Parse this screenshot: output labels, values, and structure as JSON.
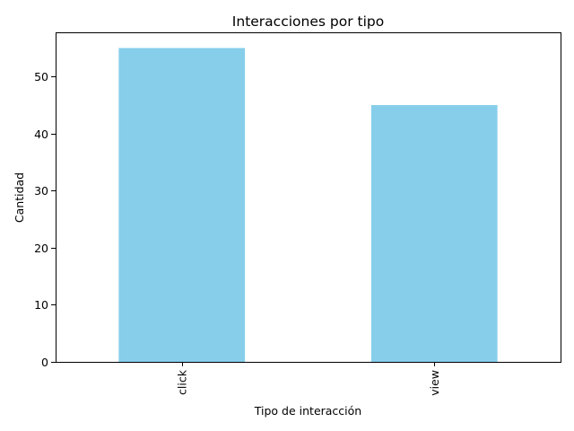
{
  "chart_data": {
    "type": "bar",
    "title": "Interacciones por tipo",
    "xlabel": "Tipo de interacción",
    "ylabel": "Cantidad",
    "categories": [
      "click",
      "view"
    ],
    "values": [
      55,
      45
    ],
    "ylim": [
      0,
      57.75
    ],
    "yticks": [
      0,
      10,
      20,
      30,
      40,
      50
    ],
    "bar_color": "#87CEEB",
    "grid": false,
    "legend": "none",
    "xtick_rotation": "vertical"
  }
}
